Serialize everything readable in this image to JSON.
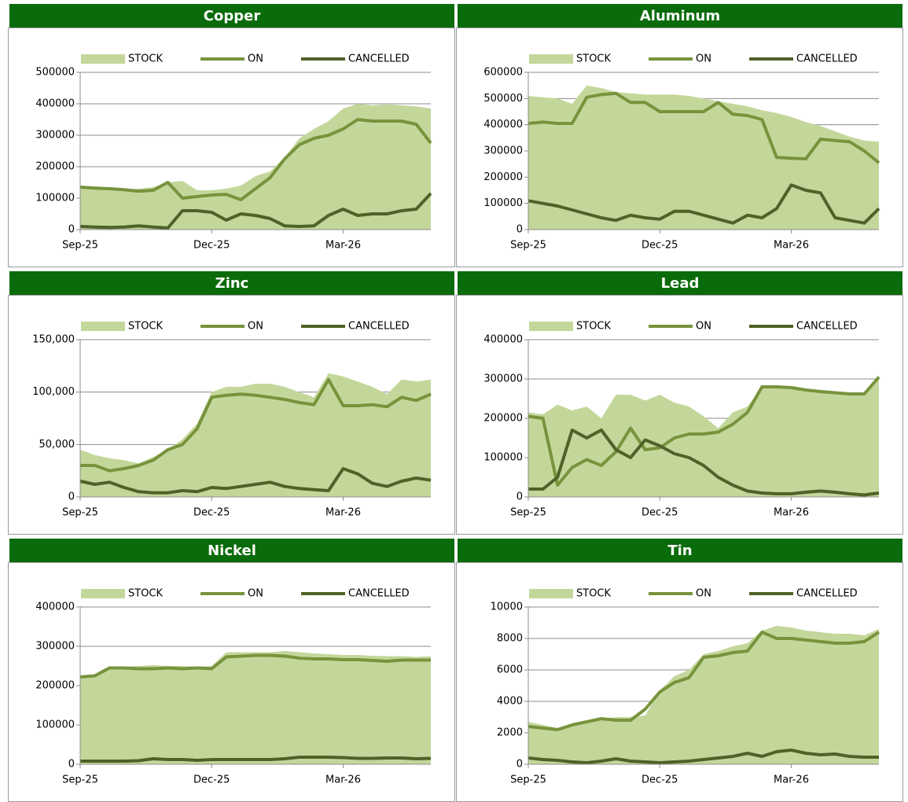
{
  "chart_data": [
    {
      "type": "line",
      "title": "Copper",
      "legend": "top",
      "grid": true,
      "categories": [
        "Sep-25",
        null,
        null,
        null,
        null,
        null,
        null,
        null,
        null,
        "Dec-25",
        null,
        null,
        null,
        null,
        null,
        null,
        null,
        null,
        "Mar-26",
        null,
        null,
        null,
        null,
        null,
        null
      ],
      "ylim": [
        0,
        500000
      ],
      "yticks": [
        0,
        100000,
        200000,
        300000,
        400000,
        500000
      ],
      "series": [
        {
          "name": "STOCK",
          "kind": "area",
          "color": "#c4d79b",
          "values": [
            135000,
            133000,
            130000,
            128000,
            130000,
            135000,
            150000,
            155000,
            125000,
            125000,
            130000,
            140000,
            170000,
            185000,
            230000,
            290000,
            320000,
            345000,
            385000,
            400000,
            395000,
            398000,
            395000,
            392000,
            385000
          ]
        },
        {
          "name": "ON",
          "kind": "line",
          "color": "#77933c",
          "values": [
            135000,
            132000,
            130000,
            127000,
            122000,
            125000,
            150000,
            100000,
            105000,
            110000,
            112000,
            95000,
            130000,
            165000,
            225000,
            270000,
            290000,
            300000,
            320000,
            350000,
            345000,
            345000,
            345000,
            335000,
            275000
          ]
        },
        {
          "name": "CANCELLED",
          "kind": "line",
          "color": "#4f6228",
          "values": [
            10000,
            8000,
            7000,
            8000,
            12000,
            8000,
            5000,
            60000,
            60000,
            55000,
            30000,
            50000,
            45000,
            35000,
            12000,
            10000,
            12000,
            45000,
            65000,
            45000,
            50000,
            50000,
            60000,
            65000,
            115000
          ]
        }
      ]
    },
    {
      "type": "line",
      "title": "Aluminum",
      "legend": "top",
      "grid": true,
      "categories": [
        "Sep-25",
        null,
        null,
        null,
        null,
        null,
        null,
        null,
        null,
        "Dec-25",
        null,
        null,
        null,
        null,
        null,
        null,
        null,
        null,
        "Mar-26",
        null,
        null,
        null,
        null,
        null,
        null
      ],
      "ylim": [
        0,
        600000
      ],
      "yticks": [
        0,
        100000,
        200000,
        300000,
        400000,
        500000,
        600000
      ],
      "series": [
        {
          "name": "STOCK",
          "kind": "area",
          "color": "#c4d79b",
          "values": [
            510000,
            505000,
            500000,
            480000,
            550000,
            540000,
            525000,
            520000,
            515000,
            515000,
            515000,
            510000,
            500000,
            490000,
            480000,
            470000,
            455000,
            445000,
            430000,
            410000,
            395000,
            375000,
            355000,
            340000,
            335000
          ]
        },
        {
          "name": "ON",
          "kind": "line",
          "color": "#77933c",
          "values": [
            405000,
            410000,
            405000,
            405000,
            505000,
            515000,
            520000,
            485000,
            485000,
            450000,
            450000,
            450000,
            450000,
            485000,
            440000,
            435000,
            420000,
            275000,
            272000,
            270000,
            345000,
            340000,
            335000,
            300000,
            255000
          ]
        },
        {
          "name": "CANCELLED",
          "kind": "line",
          "color": "#4f6228",
          "values": [
            110000,
            100000,
            90000,
            75000,
            60000,
            45000,
            35000,
            55000,
            45000,
            40000,
            70000,
            70000,
            55000,
            40000,
            25000,
            55000,
            45000,
            80000,
            170000,
            150000,
            140000,
            45000,
            35000,
            25000,
            80000
          ]
        }
      ]
    },
    {
      "type": "line",
      "title": "Zinc",
      "legend": "top",
      "grid": true,
      "categories": [
        "Sep-25",
        null,
        null,
        null,
        null,
        null,
        null,
        null,
        null,
        "Dec-25",
        null,
        null,
        null,
        null,
        null,
        null,
        null,
        null,
        "Mar-26",
        null,
        null,
        null,
        null,
        null,
        null
      ],
      "ylim": [
        0,
        150000
      ],
      "yticks": [
        0,
        {
          "value": 50000,
          "label": "50,000"
        },
        {
          "value": 100000,
          "label": "100,000"
        },
        {
          "value": 150000,
          "label": "150,000"
        }
      ],
      "series": [
        {
          "name": "STOCK",
          "kind": "area",
          "color": "#c4d79b",
          "values": [
            45000,
            40000,
            37000,
            35000,
            32000,
            38000,
            45000,
            55000,
            70000,
            100000,
            105000,
            105000,
            108000,
            108000,
            105000,
            100000,
            95000,
            118000,
            115000,
            110000,
            105000,
            98000,
            112000,
            110000,
            112000
          ]
        },
        {
          "name": "ON",
          "kind": "line",
          "color": "#77933c",
          "values": [
            30000,
            30000,
            25000,
            27000,
            30000,
            35000,
            45000,
            50000,
            65000,
            95000,
            97000,
            98000,
            97000,
            95000,
            93000,
            90000,
            88000,
            112000,
            87000,
            87000,
            88000,
            86000,
            95000,
            92000,
            98000
          ]
        },
        {
          "name": "CANCELLED",
          "kind": "line",
          "color": "#4f6228",
          "values": [
            15000,
            12000,
            14000,
            9000,
            5000,
            4000,
            4000,
            6000,
            5000,
            9000,
            8000,
            10000,
            12000,
            14000,
            10000,
            8000,
            7000,
            6000,
            27000,
            22000,
            13000,
            10000,
            15000,
            18000,
            16000
          ]
        }
      ]
    },
    {
      "type": "line",
      "title": "Lead",
      "legend": "top",
      "grid": true,
      "categories": [
        "Sep-25",
        null,
        null,
        null,
        null,
        null,
        null,
        null,
        null,
        "Dec-25",
        null,
        null,
        null,
        null,
        null,
        null,
        null,
        null,
        "Mar-26",
        null,
        null,
        null,
        null,
        null,
        null
      ],
      "ylim": [
        0,
        400000
      ],
      "yticks": [
        0,
        100000,
        200000,
        300000,
        400000
      ],
      "series": [
        {
          "name": "STOCK",
          "kind": "area",
          "color": "#c4d79b",
          "values": [
            215000,
            210000,
            235000,
            220000,
            230000,
            200000,
            260000,
            260000,
            245000,
            260000,
            240000,
            230000,
            205000,
            175000,
            215000,
            230000,
            280000,
            280000,
            278000,
            275000,
            270000,
            265000,
            262000,
            262000,
            310000
          ]
        },
        {
          "name": "ON",
          "kind": "line",
          "color": "#77933c",
          "values": [
            205000,
            200000,
            30000,
            75000,
            95000,
            80000,
            115000,
            175000,
            120000,
            125000,
            150000,
            160000,
            160000,
            165000,
            185000,
            215000,
            280000,
            280000,
            278000,
            272000,
            268000,
            265000,
            262000,
            262000,
            305000
          ]
        },
        {
          "name": "CANCELLED",
          "kind": "line",
          "color": "#4f6228",
          "values": [
            20000,
            20000,
            50000,
            170000,
            150000,
            170000,
            120000,
            100000,
            145000,
            130000,
            110000,
            100000,
            80000,
            50000,
            30000,
            15000,
            10000,
            8000,
            8000,
            12000,
            15000,
            12000,
            8000,
            5000,
            10000
          ]
        }
      ]
    },
    {
      "type": "line",
      "title": "Nickel",
      "legend": "top",
      "grid": true,
      "categories": [
        "Sep-25",
        null,
        null,
        null,
        null,
        null,
        null,
        null,
        null,
        "Dec-25",
        null,
        null,
        null,
        null,
        null,
        null,
        null,
        null,
        "Mar-26",
        null,
        null,
        null,
        null,
        null,
        null
      ],
      "ylim": [
        0,
        400000
      ],
      "yticks": [
        0,
        100000,
        200000,
        300000,
        400000
      ],
      "series": [
        {
          "name": "STOCK",
          "kind": "area",
          "color": "#c4d79b",
          "values": [
            225000,
            228000,
            245000,
            248000,
            250000,
            252000,
            250000,
            250000,
            248000,
            250000,
            285000,
            285000,
            285000,
            285000,
            288000,
            285000,
            282000,
            280000,
            278000,
            278000,
            276000,
            275000,
            275000,
            273000,
            275000
          ]
        },
        {
          "name": "ON",
          "kind": "line",
          "color": "#77933c",
          "values": [
            222000,
            225000,
            245000,
            245000,
            243000,
            243000,
            245000,
            243000,
            245000,
            243000,
            273000,
            275000,
            277000,
            277000,
            275000,
            270000,
            268000,
            268000,
            266000,
            266000,
            264000,
            262000,
            265000,
            265000,
            265000
          ]
        },
        {
          "name": "CANCELLED",
          "kind": "line",
          "color": "#4f6228",
          "values": [
            8000,
            8000,
            8000,
            8000,
            9000,
            14000,
            12000,
            12000,
            10000,
            12000,
            12000,
            12000,
            12000,
            12000,
            14000,
            18000,
            18000,
            18000,
            17000,
            15000,
            15000,
            16000,
            16000,
            14000,
            15000
          ]
        }
      ]
    },
    {
      "type": "line",
      "title": "Tin",
      "legend": "top",
      "grid": true,
      "categories": [
        "Sep-25",
        null,
        null,
        null,
        null,
        null,
        null,
        null,
        null,
        "Dec-25",
        null,
        null,
        null,
        null,
        null,
        null,
        null,
        null,
        "Mar-26",
        null,
        null,
        null,
        null,
        null,
        null
      ],
      "ylim": [
        0,
        10000
      ],
      "yticks": [
        0,
        2000,
        4000,
        6000,
        8000,
        10000
      ],
      "series": [
        {
          "name": "STOCK",
          "kind": "area",
          "color": "#c4d79b",
          "values": [
            2700,
            2500,
            2300,
            2500,
            2700,
            2900,
            3000,
            3000,
            3100,
            4700,
            5600,
            6000,
            7000,
            7200,
            7500,
            7700,
            8500,
            8800,
            8700,
            8500,
            8400,
            8300,
            8300,
            8200,
            8600
          ]
        },
        {
          "name": "ON",
          "kind": "line",
          "color": "#77933c",
          "values": [
            2400,
            2300,
            2200,
            2500,
            2700,
            2900,
            2800,
            2800,
            3500,
            4600,
            5200,
            5500,
            6800,
            6900,
            7100,
            7200,
            8400,
            8000,
            8000,
            7900,
            7800,
            7700,
            7700,
            7800,
            8400
          ]
        },
        {
          "name": "CANCELLED",
          "kind": "line",
          "color": "#4f6228",
          "values": [
            400,
            300,
            250,
            150,
            100,
            200,
            350,
            200,
            150,
            100,
            150,
            200,
            300,
            400,
            500,
            700,
            500,
            800,
            900,
            700,
            600,
            650,
            500,
            450,
            450
          ]
        }
      ]
    }
  ]
}
